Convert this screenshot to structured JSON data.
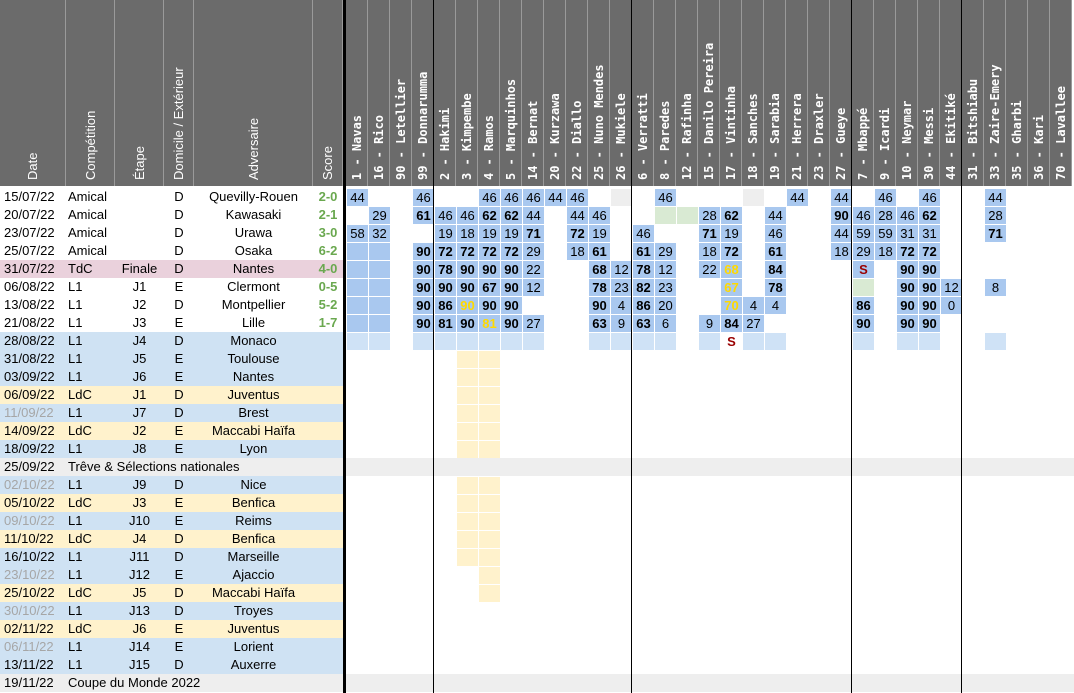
{
  "headers": {
    "date": "Date",
    "competition": "Compétition",
    "etape": "Étape",
    "domicile": "Domicile / Extérieur",
    "adversaire": "Adversaire",
    "score": "Score"
  },
  "players": [
    {
      "num": "1",
      "name": "Navas"
    },
    {
      "num": "16",
      "name": "Rico"
    },
    {
      "num": "90",
      "name": "Letellier"
    },
    {
      "num": "99",
      "name": "Donnarumma"
    },
    {
      "num": "2",
      "name": "Hakimi"
    },
    {
      "num": "3",
      "name": "Kimpembe"
    },
    {
      "num": "4",
      "name": "Ramos"
    },
    {
      "num": "5",
      "name": "Marquinhos"
    },
    {
      "num": "14",
      "name": "Bernat"
    },
    {
      "num": "20",
      "name": "Kurzawa"
    },
    {
      "num": "22",
      "name": "Diallo"
    },
    {
      "num": "25",
      "name": "Nuno Mendes"
    },
    {
      "num": "26",
      "name": "Mukiele"
    },
    {
      "num": "6",
      "name": "Verratti"
    },
    {
      "num": "8",
      "name": "Paredes"
    },
    {
      "num": "12",
      "name": "Rafinha"
    },
    {
      "num": "15",
      "name": "Danilo Pereira"
    },
    {
      "num": "17",
      "name": "Vintinha"
    },
    {
      "num": "18",
      "name": "Sanches"
    },
    {
      "num": "19",
      "name": "Sarabia"
    },
    {
      "num": "21",
      "name": "Herrera"
    },
    {
      "num": "23",
      "name": "Draxler"
    },
    {
      "num": "27",
      "name": "Gueye"
    },
    {
      "num": "7",
      "name": "Mbappé"
    },
    {
      "num": "9",
      "name": "Icardi"
    },
    {
      "num": "10",
      "name": "Neymar"
    },
    {
      "num": "30",
      "name": "Messi"
    },
    {
      "num": "44",
      "name": "Ekitiké"
    },
    {
      "num": "31",
      "name": "Bitshiabu"
    },
    {
      "num": "33",
      "name": "Zaire-Emery"
    },
    {
      "num": "35",
      "name": "Gharbi"
    },
    {
      "num": "36",
      "name": "Kari"
    },
    {
      "num": "70",
      "name": "Lavallee"
    }
  ],
  "matches": [
    {
      "date": "15/07/22",
      "comp": "Amical",
      "etape": "",
      "de": "D",
      "adv": "Quevilly-Rouen",
      "score": "2-0",
      "played": true,
      "cells": {
        "1": "44",
        "4": "46",
        "7": "46",
        "8": "46",
        "9": "46",
        "10": "44",
        "11": "46",
        "15": "46",
        "21": "44",
        "23": "44",
        "25": "46",
        "27": "46",
        "30": "44"
      }
    },
    {
      "date": "20/07/22",
      "comp": "Amical",
      "etape": "",
      "de": "D",
      "adv": "Kawasaki",
      "score": "2-1",
      "played": true,
      "cells": {
        "2": "29",
        "4": "61",
        "5": "46",
        "6": "46",
        "7": "62",
        "8": "62",
        "9": "44",
        "11": "44",
        "12": "46",
        "17": "28",
        "18": "62",
        "20": "44",
        "23": "90",
        "24": "46",
        "25": "28",
        "26": "46",
        "27": "62",
        "30": "28"
      }
    },
    {
      "date": "23/07/22",
      "comp": "Amical",
      "etape": "",
      "de": "D",
      "adv": "Urawa",
      "score": "3-0",
      "played": true,
      "cells": {
        "1": "58",
        "2": "32",
        "5": "19",
        "6": "18",
        "7": "19",
        "8": "19",
        "9": "71",
        "11": "72",
        "12": "19",
        "14": "46",
        "17": "71",
        "18": "19",
        "20": "46",
        "23": "44",
        "24": "59",
        "25": "59",
        "26": "31",
        "27": "31",
        "30": "71"
      }
    },
    {
      "date": "25/07/22",
      "comp": "Amical",
      "etape": "",
      "de": "D",
      "adv": "Osaka",
      "score": "6-2",
      "played": true,
      "cells": {
        "4": "90",
        "5": "72",
        "6": "72",
        "7": "72",
        "8": "72",
        "9": "29",
        "11": "18",
        "12": "61",
        "14": "61",
        "15": "29",
        "17": "18",
        "18": "72",
        "20": "61",
        "23": "18",
        "24": "29",
        "25": "18",
        "26": "72",
        "27": "72"
      }
    },
    {
      "date": "31/07/22",
      "comp": "TdC",
      "etape": "Finale",
      "de": "D",
      "adv": "Nantes",
      "score": "4-0",
      "played": true,
      "cells": {
        "4": "90",
        "5": "78",
        "6": "90",
        "7": "90",
        "8": "90",
        "9": "22",
        "12": "68",
        "13": "12",
        "14": "78",
        "15": "12",
        "17": "22",
        "18": "68",
        "20": "84",
        "24": "S",
        "26": "90",
        "27": "90"
      }
    },
    {
      "date": "06/08/22",
      "comp": "L1",
      "etape": "J1",
      "de": "E",
      "adv": "Clermont",
      "score": "0-5",
      "played": true,
      "cells": {
        "4": "90",
        "5": "90",
        "6": "90",
        "7": "67",
        "8": "90",
        "9": "12",
        "12": "78",
        "13": "23",
        "14": "82",
        "15": "23",
        "18": "67",
        "20": "78",
        "26": "90",
        "27": "90",
        "28": "12",
        "30": "8"
      }
    },
    {
      "date": "13/08/22",
      "comp": "L1",
      "etape": "J2",
      "de": "D",
      "adv": "Montpellier",
      "score": "5-2",
      "played": true,
      "cells": {
        "4": "90",
        "5": "86",
        "6": "90",
        "7": "90",
        "8": "90",
        "12": "90",
        "13": "4",
        "14": "86",
        "15": "20",
        "18": "70",
        "19": "4",
        "20": "4",
        "24": "86",
        "26": "90",
        "27": "90",
        "28": "0"
      }
    },
    {
      "date": "21/08/22",
      "comp": "L1",
      "etape": "J3",
      "de": "E",
      "adv": "Lille",
      "score": "1-7",
      "played": true,
      "cells": {
        "4": "90",
        "5": "81",
        "6": "90",
        "7": "81",
        "8": "90",
        "9": "27",
        "12": "63",
        "13": "9",
        "14": "63",
        "15": "6",
        "17": "9",
        "18": "84",
        "19": "27",
        "24": "90",
        "26": "90",
        "27": "90"
      }
    },
    {
      "date": "28/08/22",
      "comp": "L1",
      "etape": "J4",
      "de": "D",
      "adv": "Monaco",
      "score": "",
      "played": false,
      "cells": {
        "18": "S"
      }
    },
    {
      "date": "31/08/22",
      "comp": "L1",
      "etape": "J5",
      "de": "E",
      "adv": "Toulouse",
      "score": "",
      "played": false,
      "cells": {}
    },
    {
      "date": "03/09/22",
      "comp": "L1",
      "etape": "J6",
      "de": "E",
      "adv": "Nantes",
      "score": "",
      "played": false,
      "cells": {}
    },
    {
      "date": "06/09/22",
      "comp": "LdC",
      "etape": "J1",
      "de": "D",
      "adv": "Juventus",
      "score": "",
      "played": false,
      "cells": {}
    },
    {
      "date": "11/09/22",
      "comp": "L1",
      "etape": "J7",
      "de": "D",
      "adv": "Brest",
      "score": "",
      "played": false,
      "cells": {}
    },
    {
      "date": "14/09/22",
      "comp": "LdC",
      "etape": "J2",
      "de": "E",
      "adv": "Maccabi Haïfa",
      "score": "",
      "played": false,
      "cells": {}
    },
    {
      "date": "18/09/22",
      "comp": "L1",
      "etape": "J8",
      "de": "E",
      "adv": "Lyon",
      "score": "",
      "played": false,
      "cells": {}
    },
    {
      "date": "25/09/22",
      "comp": "Trêve & Sélections nationales",
      "etape": "",
      "de": "",
      "adv": "",
      "score": "",
      "played": false,
      "special": true,
      "cells": {}
    },
    {
      "date": "02/10/22",
      "comp": "L1",
      "etape": "J9",
      "de": "D",
      "adv": "Nice",
      "score": "",
      "played": false,
      "cells": {}
    },
    {
      "date": "05/10/22",
      "comp": "LdC",
      "etape": "J3",
      "de": "E",
      "adv": "Benfica",
      "score": "",
      "played": false,
      "cells": {}
    },
    {
      "date": "09/10/22",
      "comp": "L1",
      "etape": "J10",
      "de": "E",
      "adv": "Reims",
      "score": "",
      "played": false,
      "cells": {}
    },
    {
      "date": "11/10/22",
      "comp": "LdC",
      "etape": "J4",
      "de": "D",
      "adv": "Benfica",
      "score": "",
      "played": false,
      "cells": {}
    },
    {
      "date": "16/10/22",
      "comp": "L1",
      "etape": "J11",
      "de": "D",
      "adv": "Marseille",
      "score": "",
      "played": false,
      "cells": {}
    },
    {
      "date": "23/10/22",
      "comp": "L1",
      "etape": "J12",
      "de": "E",
      "adv": "Ajaccio",
      "score": "",
      "played": false,
      "cells": {}
    },
    {
      "date": "25/10/22",
      "comp": "LdC",
      "etape": "J5",
      "de": "D",
      "adv": "Maccabi Haïfa",
      "score": "",
      "played": false,
      "cells": {}
    },
    {
      "date": "30/10/22",
      "comp": "L1",
      "etape": "J13",
      "de": "D",
      "adv": "Troyes",
      "score": "",
      "played": false,
      "cells": {}
    },
    {
      "date": "02/11/22",
      "comp": "LdC",
      "etape": "J6",
      "de": "E",
      "adv": "Juventus",
      "score": "",
      "played": false,
      "cells": {}
    },
    {
      "date": "06/11/22",
      "comp": "L1",
      "etape": "J14",
      "de": "E",
      "adv": "Lorient",
      "score": "",
      "played": false,
      "cells": {}
    },
    {
      "date": "13/11/22",
      "comp": "L1",
      "etape": "J15",
      "de": "D",
      "adv": "Auxerre",
      "score": "",
      "played": false,
      "cells": {}
    },
    {
      "date": "19/11/22",
      "comp": "Coupe du Monde 2022",
      "etape": "",
      "de": "",
      "adv": "",
      "score": "",
      "played": false,
      "special": true,
      "cells": {}
    }
  ],
  "colors": {
    "header_bg": "#6b6b6b",
    "cell_blue": "#a9c8ef",
    "cell_pale_blue": "#cfe2f6",
    "cell_green": "#d9ead3",
    "row_tdc": "#ead1dc",
    "row_ldc": "#fff2cc",
    "row_l1": "#cfe2f3",
    "row_gray": "#eeeeee",
    "score_green": "#6aa84f",
    "yellow_text": "#ffd900",
    "sub_red": "#990000"
  }
}
